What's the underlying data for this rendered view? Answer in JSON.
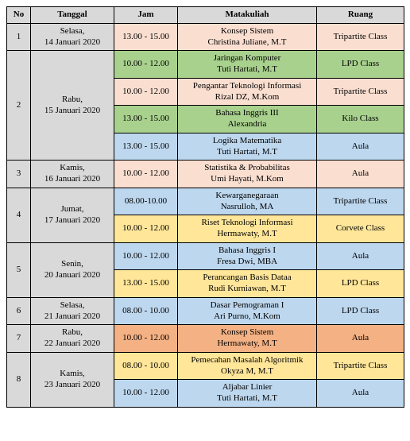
{
  "colors": {
    "header_bg": "#d9d9d9",
    "no_col_bg": "#d9d9d9",
    "date_col_bg": "#d9d9d9",
    "pink": "#fadfd1",
    "blue": "#bdd7ee",
    "green": "#a9d18e",
    "yellow": "#ffe699",
    "orange": "#f4b183"
  },
  "headers": {
    "no": "No",
    "tanggal": "Tanggal",
    "jam": "Jam",
    "matakuliah": "Matakuliah",
    "ruang": "Ruang"
  },
  "rows": [
    {
      "no": "1",
      "date": "Selasa, 14 Januari 2020",
      "rowspan": 1,
      "sessions": [
        {
          "time": "13.00 - 15.00",
          "course": "Konsep Sistem",
          "lecturer": "Christina Juliane, M.T",
          "room": "Tripartite Class",
          "color": "pink"
        }
      ]
    },
    {
      "no": "2",
      "date": "Rabu, 15 Januari 2020",
      "rowspan": 4,
      "sessions": [
        {
          "time": "10.00 - 12.00",
          "course": "Jaringan Komputer",
          "lecturer": "Tuti Hartati, M.T",
          "room": "LPD Class",
          "color": "green"
        },
        {
          "time": "10.00 - 12.00",
          "course": "Pengantar Teknologi Informasi",
          "lecturer": "Rizal DZ, M.Kom",
          "room": "Tripartite Class",
          "color": "pink"
        },
        {
          "time": "13.00 - 15.00",
          "course": "Bahasa Inggris III",
          "lecturer": "Alexandria",
          "room": "Kilo Class",
          "color": "green"
        },
        {
          "time": "13.00 - 15.00",
          "course": "Logika Matematika",
          "lecturer": "Tuti Hartati, M.T",
          "room": "Aula",
          "color": "blue"
        }
      ]
    },
    {
      "no": "3",
      "date": "Kamis, 16 Januari 2020",
      "rowspan": 1,
      "sessions": [
        {
          "time": "10.00 - 12.00",
          "course": "Statistika & Probabilitas",
          "lecturer": "Umi Hayati, M.Kom",
          "room": "Aula",
          "color": "pink"
        }
      ]
    },
    {
      "no": "4",
      "date": "Jumat, 17 Januari 2020",
      "rowspan": 2,
      "sessions": [
        {
          "time": "08.00-10.00",
          "course": "Kewarganegaraan",
          "lecturer": "Nasrulloh, MA",
          "room": "Tripartite Class",
          "color": "blue"
        },
        {
          "time": "10.00 - 12.00",
          "course": "Riset Teknologi Informasi",
          "lecturer": "Hermawaty, M.T",
          "room": "Corvete Class",
          "color": "yellow"
        }
      ]
    },
    {
      "no": "5",
      "date": "Senin, 20 Januari 2020",
      "rowspan": 2,
      "sessions": [
        {
          "time": "10.00 - 12.00",
          "course": "Bahasa Inggris I",
          "lecturer": "Fresa Dwi, MBA",
          "room": "Aula",
          "color": "blue"
        },
        {
          "time": "13.00 - 15.00",
          "course": "Perancangan Basis Dataa",
          "lecturer": "Rudi Kurniawan, M.T",
          "room": "LPD Class",
          "color": "yellow"
        }
      ]
    },
    {
      "no": "6",
      "date": "Selasa, 21 Januari 2020",
      "rowspan": 1,
      "sessions": [
        {
          "time": "08.00 - 10.00",
          "course": "Dasar Pemograman I",
          "lecturer": "Ari Purno, M.Kom",
          "room": "LPD Class",
          "color": "blue"
        }
      ]
    },
    {
      "no": "7",
      "date": "Rabu, 22 Januari 2020",
      "rowspan": 1,
      "sessions": [
        {
          "time": "10.00 - 12.00",
          "course": "Konsep Sistem",
          "lecturer": "Hermawaty, M.T",
          "room": "Aula",
          "color": "orange"
        }
      ]
    },
    {
      "no": "8",
      "date": "Kamis, 23 Januari 2020",
      "rowspan": 2,
      "sessions": [
        {
          "time": "08.00 - 10.00",
          "course": "Pemecahan Masalah Algoritmik",
          "lecturer": "Okyza M, M.T",
          "room": "Tripartite Class",
          "color": "yellow"
        },
        {
          "time": "10.00 - 12.00",
          "course": "Aljabar Linier",
          "lecturer": "Tuti Hartati, M.T",
          "room": "Aula",
          "color": "blue"
        }
      ]
    }
  ]
}
